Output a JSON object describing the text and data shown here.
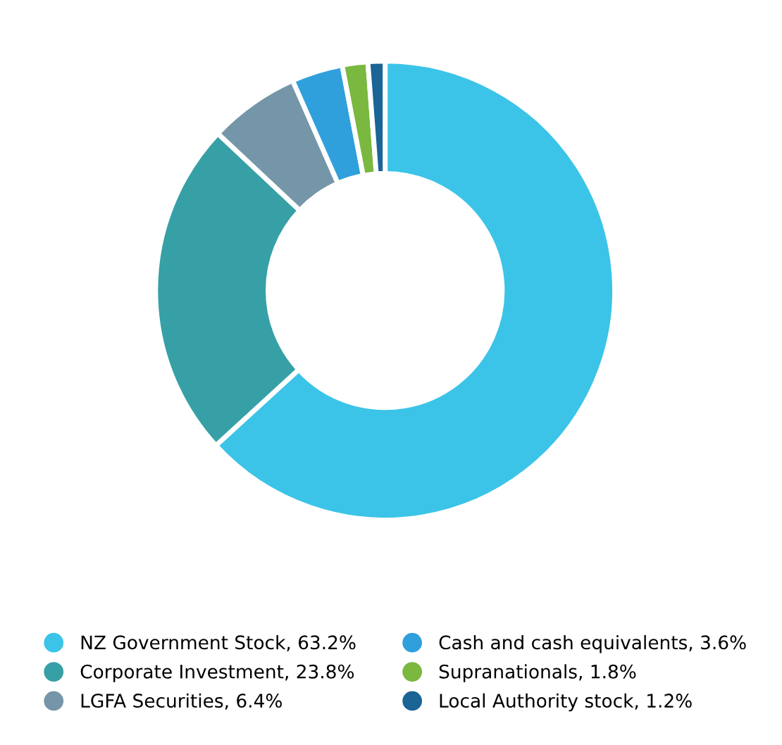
{
  "chart_data": {
    "type": "donut",
    "categories": [
      "NZ Government Stock, 63.2%",
      "Corporate Investment, 23.8%",
      "LGFA Securities, 6.4%",
      "Cash and cash equivalents, 3.6%",
      "Supranationals, 1.8%",
      "Local Authority stock, 1.2%"
    ],
    "values": [
      63.2,
      23.8,
      6.4,
      3.6,
      1.8,
      1.2
    ],
    "colors": [
      "#3bc4e8",
      "#36a0a6",
      "#7596a8",
      "#30a0dc",
      "#7ab840",
      "#1a6496"
    ],
    "legend": "bottom"
  }
}
